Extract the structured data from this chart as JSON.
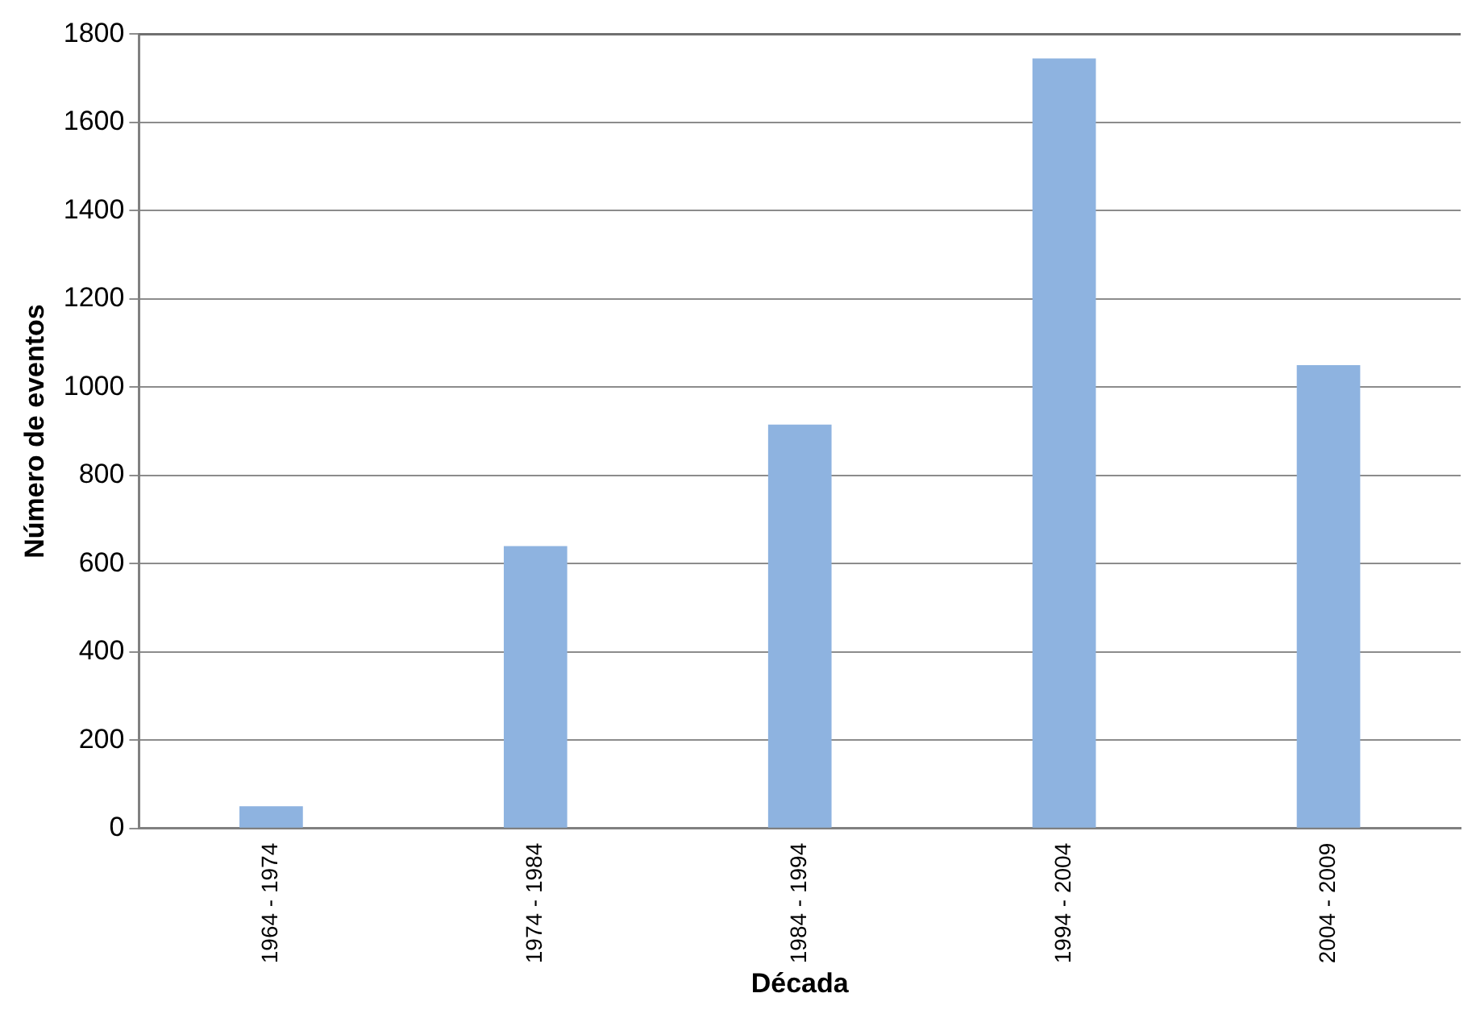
{
  "chart_data": {
    "type": "bar",
    "xlabel": "Década",
    "ylabel": "Número de eventos",
    "categories": [
      "1964 - 1974",
      "1974 - 1984",
      "1984 - 1994",
      "1994 - 2004",
      "2004 - 2009"
    ],
    "values": [
      50,
      640,
      915,
      1745,
      1050
    ],
    "color": "#8eb3e0",
    "ylim": [
      0,
      1800
    ],
    "yticks": [
      0,
      200,
      400,
      600,
      800,
      1000,
      1200,
      1400,
      1600,
      1800
    ],
    "grid": "y",
    "legend": false
  }
}
